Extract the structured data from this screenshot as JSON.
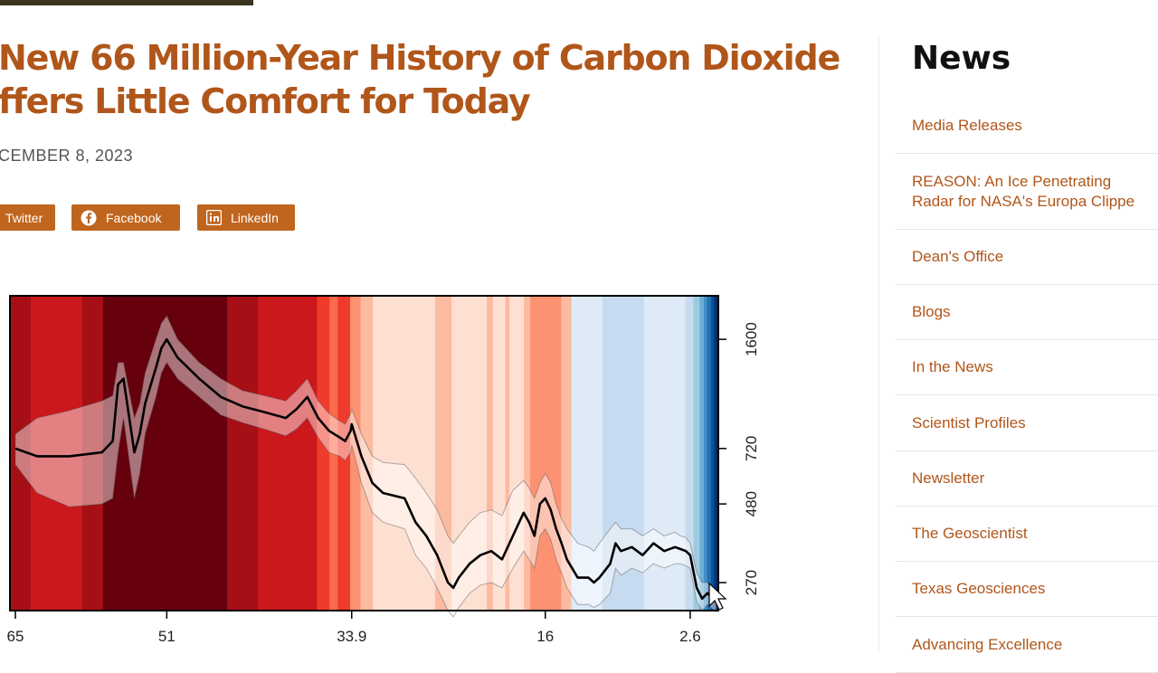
{
  "article": {
    "title_line1": "New 66 Million-Year History of Carbon Dioxide",
    "title_line2": "ffers Little Comfort for Today",
    "date": "CEMBER 8, 2023",
    "share": {
      "twitter_label": "Twitter",
      "facebook_label": "Facebook",
      "linkedin_label": "LinkedIn"
    }
  },
  "chart_data": {
    "type": "line",
    "title": "",
    "xlabel": "",
    "ylabel": "",
    "x_reversed": true,
    "x_ticks": [
      65,
      51,
      33.9,
      16,
      2.6
    ],
    "y_ticks": [
      270,
      480,
      720,
      1600
    ],
    "y_scale": "log",
    "xlim": [
      65.5,
      0
    ],
    "ylim": [
      220,
      2200
    ],
    "series": [
      {
        "values_x": [
          65,
          63,
          60,
          57,
          56,
          55.5,
          55,
          54,
          53.5,
          53,
          52,
          51.5,
          51,
          50,
          48,
          46,
          44,
          42,
          40,
          39,
          38,
          37,
          36,
          35,
          34.5,
          34,
          33.9,
          33,
          32,
          31,
          29,
          28,
          27,
          26,
          25,
          24.5,
          24,
          23,
          22,
          21,
          20,
          19,
          18,
          17.5,
          17,
          16.5,
          16,
          15.5,
          15,
          14.5,
          14,
          13,
          12,
          11.5,
          11,
          10,
          9.5,
          9,
          8,
          7,
          6,
          5,
          4,
          3.5,
          3,
          2.6,
          2,
          1.5,
          1,
          0.5,
          0.2
        ],
        "values_y": [
          720,
          680,
          680,
          700,
          760,
          1150,
          1200,
          700,
          800,
          1000,
          1300,
          1500,
          1600,
          1400,
          1200,
          1050,
          980,
          940,
          900,
          960,
          1050,
          900,
          820,
          780,
          760,
          820,
          860,
          680,
          560,
          520,
          500,
          420,
          380,
          330,
          270,
          260,
          280,
          310,
          330,
          340,
          320,
          380,
          450,
          420,
          380,
          480,
          500,
          460,
          400,
          360,
          320,
          280,
          280,
          270,
          280,
          310,
          360,
          340,
          350,
          330,
          360,
          340,
          350,
          345,
          340,
          330,
          260,
          240,
          250,
          240,
          235
        ],
        "values_y_upper": [
          800,
          900,
          950,
          1020,
          1060,
          1350,
          1350,
          900,
          1000,
          1250,
          1600,
          1800,
          1900,
          1600,
          1350,
          1200,
          1100,
          1060,
          1020,
          1100,
          1200,
          1020,
          930,
          880,
          860,
          930,
          960,
          800,
          680,
          650,
          640,
          580,
          520,
          460,
          380,
          360,
          380,
          420,
          450,
          460,
          440,
          530,
          570,
          540,
          500,
          560,
          600,
          560,
          480,
          430,
          400,
          360,
          350,
          340,
          360,
          400,
          420,
          400,
          400,
          380,
          400,
          380,
          390,
          380,
          375,
          360,
          290,
          270,
          270,
          260,
          255
        ],
        "values_y_lower": [
          640,
          520,
          470,
          480,
          500,
          700,
          900,
          500,
          600,
          800,
          1050,
          1250,
          1350,
          1200,
          1050,
          920,
          870,
          830,
          790,
          830,
          900,
          780,
          700,
          680,
          660,
          700,
          740,
          560,
          450,
          420,
          400,
          330,
          300,
          260,
          220,
          210,
          225,
          250,
          265,
          270,
          260,
          300,
          340,
          320,
          300,
          380,
          400,
          370,
          320,
          290,
          260,
          230,
          230,
          225,
          230,
          250,
          300,
          285,
          300,
          290,
          310,
          300,
          310,
          310,
          305,
          300,
          235,
          220,
          230,
          222,
          218
        ]
      }
    ],
    "stripe_colors": [
      "#a50f15",
      "#cb181d",
      "#a50f15",
      "#67000d",
      "#67000d",
      "#a50f15",
      "#cb181d",
      "#cb181d",
      "#ef3b2c",
      "#fb6a4a",
      "#ef3b2c",
      "#fc9272",
      "#fcbba1",
      "#fee0d2",
      "#fcbba1",
      "#fee0d2",
      "#fee0d2",
      "#fcbba1",
      "#fee0d2",
      "#fcbba1",
      "#fee0d2",
      "#fcbba1",
      "#fc9272",
      "#fcbba1",
      "#deebf7",
      "#c6dbef",
      "#deebf7",
      "#c6dbef",
      "#9ecae1",
      "#6baed6",
      "#4292c6",
      "#2171b5",
      "#08519c",
      "#08306b"
    ],
    "stripe_widths": [
      2,
      5,
      2,
      6,
      6,
      3,
      5,
      0.7,
      1.2,
      0.8,
      1.2,
      1,
      1.2,
      6,
      1.6,
      1.8,
      1.6,
      0.6,
      1.2,
      0.4,
      1.4,
      0.6,
      3,
      1,
      3,
      4,
      4,
      0.8,
      0.6,
      0.4,
      0.3,
      0.4,
      0.3,
      0.4
    ],
    "line_color": "#000000",
    "band_color": "#ffffff"
  },
  "sidebar": {
    "title": "News",
    "items": [
      {
        "label": "Media Releases"
      },
      {
        "label": "REASON: An Ice Penetrating Radar for NASA's Europa Clipper",
        "line1": "REASON: An Ice Penetrating",
        "line2": "Radar for NASA's Europa Clippe"
      },
      {
        "label": "Dean's Office"
      },
      {
        "label": "Blogs"
      },
      {
        "label": "In the News"
      },
      {
        "label": "Scientist Profiles"
      },
      {
        "label": "Newsletter"
      },
      {
        "label": "The Geoscientist"
      },
      {
        "label": "Texas Geosciences"
      },
      {
        "label": "Advancing Excellence"
      }
    ]
  }
}
